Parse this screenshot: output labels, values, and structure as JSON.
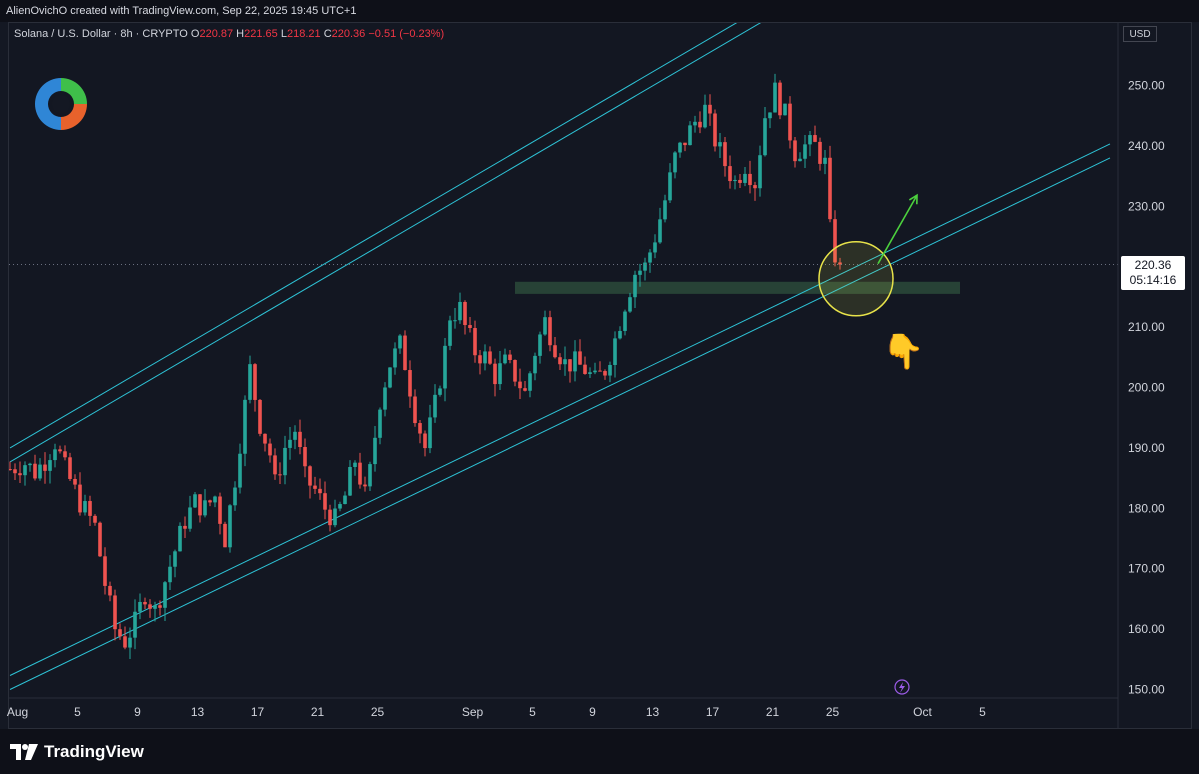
{
  "header": {
    "credit": "AlienOvichO created with TradingView.com, Sep 22, 2025 19:45 UTC+1"
  },
  "symbol": {
    "name": "Solana / U.S. Dollar · 8h · CRYPTO",
    "o_label": "O",
    "o": "220.87",
    "h_label": "H",
    "h": "221.65",
    "l_label": "L",
    "l": "218.21",
    "c_label": "C",
    "c": "220.36",
    "change": "−0.51 (−0.23%)"
  },
  "currency": "USD",
  "price_tag": {
    "price": "220.36",
    "countdown": "05:14:16"
  },
  "footer": {
    "brand": "TradingView"
  },
  "colors": {
    "up": "#26a69a",
    "down": "#ef5350",
    "channel": "#2ec3d6",
    "zone": "#2b4a3a",
    "circle": "#e8e34a",
    "arrow": "#4cd13e",
    "background": "#131722"
  },
  "chart_data": {
    "type": "candlestick",
    "symbol": "Solana / U.S. Dollar",
    "timeframe": "8h",
    "y_axis": {
      "ticks": [
        "250.00",
        "240.00",
        "230.00",
        "220.00",
        "210.00",
        "200.00",
        "190.00",
        "180.00",
        "170.00",
        "160.00",
        "150.00"
      ],
      "ylim": [
        148,
        257
      ]
    },
    "x_axis": {
      "ticks": [
        "Aug",
        "5",
        "9",
        "13",
        "17",
        "21",
        "25",
        "Sep",
        "5",
        "9",
        "13",
        "17",
        "21",
        "25",
        "Oct",
        "5"
      ]
    },
    "close_path": [
      {
        "x": 0,
        "y": 186.5
      },
      {
        "x": 3,
        "y": 187.5
      },
      {
        "x": 5,
        "y": 186
      },
      {
        "x": 7,
        "y": 188
      },
      {
        "x": 9,
        "y": 191
      },
      {
        "x": 11,
        "y": 186.5
      },
      {
        "x": 14,
        "y": 181
      },
      {
        "x": 17,
        "y": 177
      },
      {
        "x": 19,
        "y": 167.5
      },
      {
        "x": 21,
        "y": 160
      },
      {
        "x": 23,
        "y": 158
      },
      {
        "x": 25,
        "y": 161
      },
      {
        "x": 27,
        "y": 166
      },
      {
        "x": 29,
        "y": 163
      },
      {
        "x": 31,
        "y": 168
      },
      {
        "x": 33,
        "y": 173
      },
      {
        "x": 35,
        "y": 178
      },
      {
        "x": 37,
        "y": 181
      },
      {
        "x": 39,
        "y": 180
      },
      {
        "x": 41,
        "y": 182
      },
      {
        "x": 43,
        "y": 175
      },
      {
        "x": 45,
        "y": 185
      },
      {
        "x": 47,
        "y": 197
      },
      {
        "x": 48,
        "y": 203
      },
      {
        "x": 50,
        "y": 194
      },
      {
        "x": 52,
        "y": 189
      },
      {
        "x": 53,
        "y": 184
      },
      {
        "x": 55,
        "y": 190
      },
      {
        "x": 57,
        "y": 193
      },
      {
        "x": 59,
        "y": 185
      },
      {
        "x": 61,
        "y": 183
      },
      {
        "x": 63,
        "y": 180
      },
      {
        "x": 65,
        "y": 178
      },
      {
        "x": 67,
        "y": 182
      },
      {
        "x": 69,
        "y": 188
      },
      {
        "x": 71,
        "y": 182
      },
      {
        "x": 72,
        "y": 186
      },
      {
        "x": 74,
        "y": 198
      },
      {
        "x": 76,
        "y": 204
      },
      {
        "x": 78,
        "y": 207
      },
      {
        "x": 79,
        "y": 204
      },
      {
        "x": 81,
        "y": 196
      },
      {
        "x": 83,
        "y": 190
      },
      {
        "x": 85,
        "y": 197
      },
      {
        "x": 87,
        "y": 206
      },
      {
        "x": 88,
        "y": 212
      },
      {
        "x": 90,
        "y": 213
      },
      {
        "x": 91,
        "y": 210
      },
      {
        "x": 93,
        "y": 206
      },
      {
        "x": 95,
        "y": 205
      },
      {
        "x": 97,
        "y": 202
      },
      {
        "x": 99,
        "y": 204
      },
      {
        "x": 101,
        "y": 202
      },
      {
        "x": 103,
        "y": 199
      },
      {
        "x": 105,
        "y": 206
      },
      {
        "x": 107,
        "y": 211
      },
      {
        "x": 109,
        "y": 207
      },
      {
        "x": 111,
        "y": 204
      },
      {
        "x": 113,
        "y": 204
      },
      {
        "x": 115,
        "y": 203
      },
      {
        "x": 117,
        "y": 201
      },
      {
        "x": 119,
        "y": 203
      },
      {
        "x": 121,
        "y": 208
      },
      {
        "x": 123,
        "y": 214
      },
      {
        "x": 125,
        "y": 219
      },
      {
        "x": 127,
        "y": 220
      },
      {
        "x": 129,
        "y": 225
      },
      {
        "x": 131,
        "y": 231
      },
      {
        "x": 133,
        "y": 238
      },
      {
        "x": 135,
        "y": 241
      },
      {
        "x": 137,
        "y": 244
      },
      {
        "x": 139,
        "y": 246
      },
      {
        "x": 141,
        "y": 241
      },
      {
        "x": 143,
        "y": 237
      },
      {
        "x": 145,
        "y": 234
      },
      {
        "x": 147,
        "y": 237
      },
      {
        "x": 149,
        "y": 234
      },
      {
        "x": 151,
        "y": 245
      },
      {
        "x": 153,
        "y": 249
      },
      {
        "x": 155,
        "y": 245
      },
      {
        "x": 157,
        "y": 239
      },
      {
        "x": 159,
        "y": 240
      },
      {
        "x": 161,
        "y": 240
      },
      {
        "x": 163,
        "y": 237
      },
      {
        "x": 164,
        "y": 226
      },
      {
        "x": 165,
        "y": 222
      },
      {
        "x": 166,
        "y": 220.36
      }
    ],
    "x_tick_positions": [
      1.5,
      13.5,
      25.5,
      37.5,
      49.5,
      61.5,
      73.5,
      92.5,
      104.5,
      116.5,
      128.5,
      140.5,
      152.5,
      164.5,
      182.5,
      194.5
    ],
    "annotations": [
      {
        "type": "ascending-channel",
        "upper": [
          [
            0,
            190
          ],
          [
            192,
            283
          ]
        ],
        "lower": [
          [
            0,
            150
          ],
          [
            220,
            238
          ]
        ]
      },
      {
        "type": "support-zone",
        "from": 101,
        "to": 190,
        "low": 215.5,
        "high": 217.5
      },
      {
        "type": "highlight-circle",
        "at": [
          166,
          218
        ]
      },
      {
        "type": "up-arrow",
        "from": [
          170,
          220
        ],
        "to": [
          178,
          231
        ]
      },
      {
        "type": "pointing-hand-emoji"
      }
    ]
  }
}
